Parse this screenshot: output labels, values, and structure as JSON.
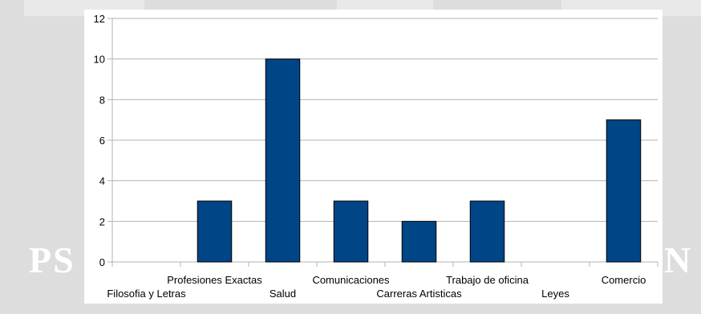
{
  "watermark": {
    "left_text": "PS",
    "right_text": "N"
  },
  "chart_data": {
    "type": "bar",
    "categories": [
      "Filosofia y Letras",
      "Profesiones Exactas",
      "Salud",
      "Comunicaciones",
      "Carreras Artisticas",
      "Trabajo de oficina",
      "Leyes",
      "Comercio"
    ],
    "values": [
      0,
      3,
      10,
      3,
      2,
      3,
      0,
      7
    ],
    "title": "",
    "xlabel": "",
    "ylabel": "",
    "ylim": [
      0,
      12
    ],
    "yticks": [
      0,
      2,
      4,
      6,
      8,
      10,
      12
    ],
    "grid": true,
    "legend": "none",
    "bar_color": "#004586",
    "bar_stroke": "#000000"
  }
}
